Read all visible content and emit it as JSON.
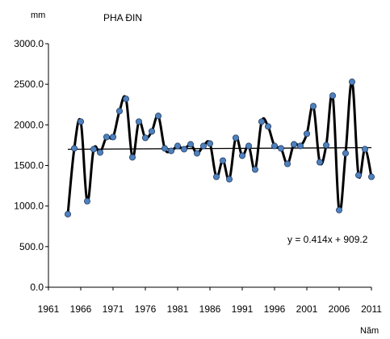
{
  "chart_data": {
    "type": "line",
    "title": "PHA ĐIN",
    "ylabel": "mm",
    "xlabel": "Năm",
    "ylim": [
      0,
      3000
    ],
    "xlim": [
      1961,
      2011
    ],
    "y_ticks": [
      "0.0",
      "500.0",
      "1000.0",
      "1500.0",
      "2000.0",
      "2500.0",
      "3000.0"
    ],
    "x_ticks": [
      "1961",
      "1966",
      "1971",
      "1976",
      "1981",
      "1986",
      "1991",
      "1996",
      "2001",
      "2006",
      "2011"
    ],
    "grid": false,
    "series": [
      {
        "x": [
          1964,
          1965,
          1966,
          1967,
          1968,
          1969,
          1970,
          1971,
          1972,
          1973,
          1974,
          1975,
          1976,
          1977,
          1978,
          1979,
          1980,
          1981,
          1982,
          1983,
          1984,
          1985,
          1986,
          1987,
          1988,
          1989,
          1990,
          1991,
          1992,
          1993,
          1994,
          1995,
          1996,
          1997,
          1998,
          1999,
          2000,
          2001,
          2002,
          2003,
          2004,
          2005,
          2006,
          2007,
          2008,
          2009,
          2010,
          2011
        ],
        "y": [
          900,
          1710,
          2040,
          1060,
          1700,
          1660,
          1850,
          1850,
          2170,
          2320,
          1600,
          2040,
          1840,
          1920,
          2110,
          1710,
          1680,
          1740,
          1700,
          1760,
          1650,
          1740,
          1770,
          1360,
          1560,
          1330,
          1840,
          1620,
          1740,
          1450,
          2040,
          1980,
          1740,
          1710,
          1520,
          1760,
          1740,
          1890,
          2230,
          1540,
          1750,
          2360,
          950,
          1650,
          2530,
          1380,
          1700,
          1360
        ],
        "color": "#000000",
        "marker_color": "#4f81bd"
      }
    ],
    "trendline": {
      "label": "y = 0.414x + 909.2",
      "slope": 0.414,
      "intercept": 909.2,
      "color": "#000000"
    }
  }
}
